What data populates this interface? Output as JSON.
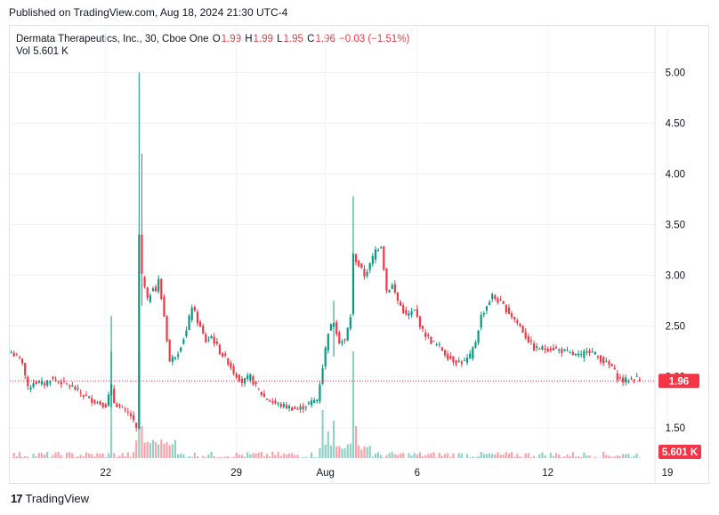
{
  "header": {
    "published": "Published on TradingView.com, Aug 18, 2024 21:30 UTC-4"
  },
  "legend": {
    "symbol": "Dermata Therapeutics, Inc., 30, Cboe One",
    "o_label": "O",
    "o_value": "1.99",
    "h_label": "H",
    "h_value": "1.99",
    "l_label": "L",
    "l_value": "1.95",
    "c_label": "C",
    "c_value": "1.96",
    "change": "−0.03 (−1.51%)",
    "vol_label": "Vol",
    "vol_value": "5.601 K"
  },
  "footer": {
    "brand": "TradingView",
    "logo_text": "17"
  },
  "colors": {
    "up": "#089981",
    "down": "#f23645",
    "grid": "#f0f3fa",
    "axis_text": "#131722",
    "price_badge": "#f23645"
  },
  "chart_data": {
    "type": "candlestick",
    "ylim": [
      1.2,
      5.1
    ],
    "y_ticks": [
      "5.00",
      "4.50",
      "4.00",
      "3.50",
      "3.00",
      "2.50",
      "2.00",
      "1.50"
    ],
    "y_tick_values": [
      5.0,
      4.5,
      4.0,
      3.5,
      3.0,
      2.5,
      2.0,
      1.5
    ],
    "x_ticks": [
      "22",
      "29",
      "Aug",
      "6",
      "12",
      "19"
    ],
    "x_tick_index": [
      34,
      81,
      113,
      146,
      193,
      236
    ],
    "last_price": "1.96",
    "last_price_value": 1.96,
    "last_volume": "5.601 K",
    "close_path": [
      [
        0,
        2.24
      ],
      [
        4,
        2.15
      ],
      [
        6,
        1.88
      ],
      [
        8,
        1.95
      ],
      [
        12,
        1.93
      ],
      [
        14,
        1.98
      ],
      [
        17,
        1.96
      ],
      [
        22,
        1.9
      ],
      [
        26,
        1.82
      ],
      [
        30,
        1.76
      ],
      [
        34,
        1.72
      ],
      [
        36,
        1.9
      ],
      [
        37,
        1.75
      ],
      [
        40,
        1.68
      ],
      [
        43,
        1.62
      ],
      [
        45,
        1.48
      ],
      [
        46,
        3.4
      ],
      [
        47,
        3.0
      ],
      [
        49,
        2.75
      ],
      [
        51,
        2.9
      ],
      [
        52,
        2.85
      ],
      [
        53,
        2.95
      ],
      [
        55,
        2.6
      ],
      [
        57,
        2.15
      ],
      [
        60,
        2.25
      ],
      [
        63,
        2.45
      ],
      [
        65,
        2.7
      ],
      [
        67,
        2.55
      ],
      [
        70,
        2.35
      ],
      [
        72,
        2.4
      ],
      [
        75,
        2.25
      ],
      [
        78,
        2.15
      ],
      [
        80,
        2.05
      ],
      [
        83,
        1.95
      ],
      [
        86,
        2.0
      ],
      [
        88,
        1.9
      ],
      [
        91,
        1.8
      ],
      [
        94,
        1.75
      ],
      [
        97,
        1.72
      ],
      [
        100,
        1.7
      ],
      [
        103,
        1.68
      ],
      [
        106,
        1.72
      ],
      [
        110,
        1.78
      ],
      [
        112,
        2.1
      ],
      [
        114,
        2.45
      ],
      [
        116,
        2.55
      ],
      [
        118,
        2.35
      ],
      [
        120,
        2.35
      ],
      [
        122,
        2.6
      ],
      [
        123,
        3.2
      ],
      [
        125,
        3.1
      ],
      [
        127,
        3.0
      ],
      [
        129,
        3.1
      ],
      [
        131,
        3.25
      ],
      [
        133,
        3.3
      ],
      [
        135,
        2.85
      ],
      [
        137,
        2.9
      ],
      [
        139,
        2.75
      ],
      [
        142,
        2.6
      ],
      [
        145,
        2.65
      ],
      [
        148,
        2.45
      ],
      [
        151,
        2.35
      ],
      [
        154,
        2.3
      ],
      [
        157,
        2.2
      ],
      [
        160,
        2.15
      ],
      [
        163,
        2.15
      ],
      [
        165,
        2.2
      ],
      [
        167,
        2.35
      ],
      [
        169,
        2.6
      ],
      [
        171,
        2.7
      ],
      [
        173,
        2.8
      ],
      [
        175,
        2.75
      ],
      [
        177,
        2.7
      ],
      [
        180,
        2.6
      ],
      [
        183,
        2.5
      ],
      [
        185,
        2.4
      ],
      [
        188,
        2.28
      ],
      [
        191,
        2.28
      ],
      [
        195,
        2.28
      ],
      [
        199,
        2.25
      ],
      [
        202,
        2.22
      ],
      [
        205,
        2.2
      ],
      [
        207,
        2.28
      ],
      [
        210,
        2.22
      ],
      [
        213,
        2.15
      ],
      [
        216,
        2.1
      ],
      [
        218,
        2.0
      ],
      [
        220,
        1.96
      ],
      [
        223,
        1.98
      ],
      [
        225,
        1.99
      ],
      [
        226,
        1.96
      ]
    ],
    "spikes": [
      {
        "i": 36,
        "high": 2.6,
        "low": 1.7
      },
      {
        "i": 46,
        "high": 5.0,
        "low": 2.6
      },
      {
        "i": 47,
        "high": 4.2,
        "low": 2.7
      },
      {
        "i": 123,
        "high": 3.78,
        "low": 2.6
      },
      {
        "i": 116,
        "high": 2.75,
        "low": 2.2
      }
    ],
    "volume_spikes": [
      {
        "i": 36,
        "v": 1.0
      },
      {
        "i": 46,
        "v": 1.0
      },
      {
        "i": 47,
        "v": 0.3
      },
      {
        "i": 112,
        "v": 0.45
      },
      {
        "i": 114,
        "v": 0.25
      },
      {
        "i": 116,
        "v": 0.35
      },
      {
        "i": 123,
        "v": 1.0
      },
      {
        "i": 124,
        "v": 0.3
      }
    ]
  }
}
